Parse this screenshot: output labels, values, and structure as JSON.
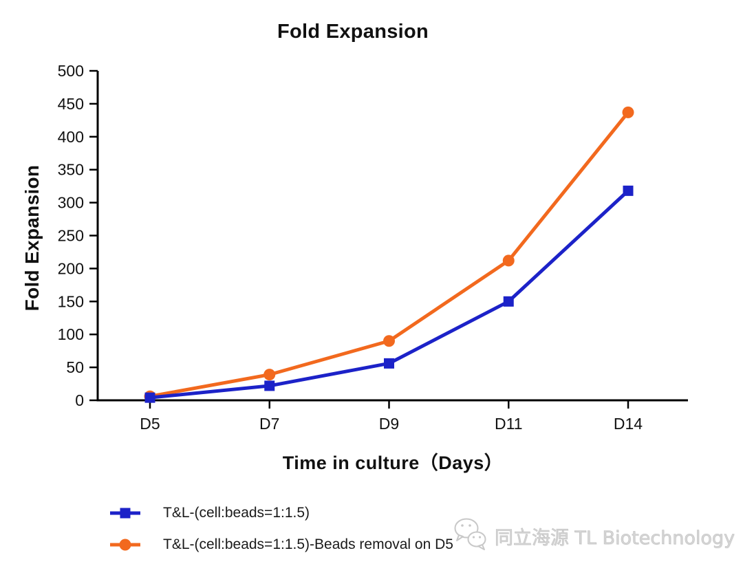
{
  "chart_data": {
    "type": "line",
    "title": "Fold Expansion",
    "xlabel": "Time in culture（Days）",
    "ylabel": "Fold Expansion",
    "categories": [
      "D5",
      "D7",
      "D9",
      "D11",
      "D14"
    ],
    "series": [
      {
        "name": "T&L-(cell:beads=1:1.5)",
        "color": "#1c22c8",
        "marker": "square",
        "values": [
          4,
          22,
          56,
          150,
          318
        ]
      },
      {
        "name": "T&L-(cell:beads=1:1.5)-Beads removal on D5",
        "color": "#f2691e",
        "marker": "circle",
        "values": [
          6,
          39,
          90,
          212,
          437
        ]
      }
    ],
    "ylim": [
      0,
      500
    ],
    "y_ticks": [
      0,
      50,
      100,
      150,
      200,
      250,
      300,
      350,
      400,
      450,
      500
    ],
    "grid": false,
    "legend_position": "bottom-left",
    "axis_color": "#000000"
  },
  "watermark": {
    "icon": "wechat-icon",
    "text": "同立海源 TL Biotechnology",
    "color": "#c9c9c9"
  }
}
